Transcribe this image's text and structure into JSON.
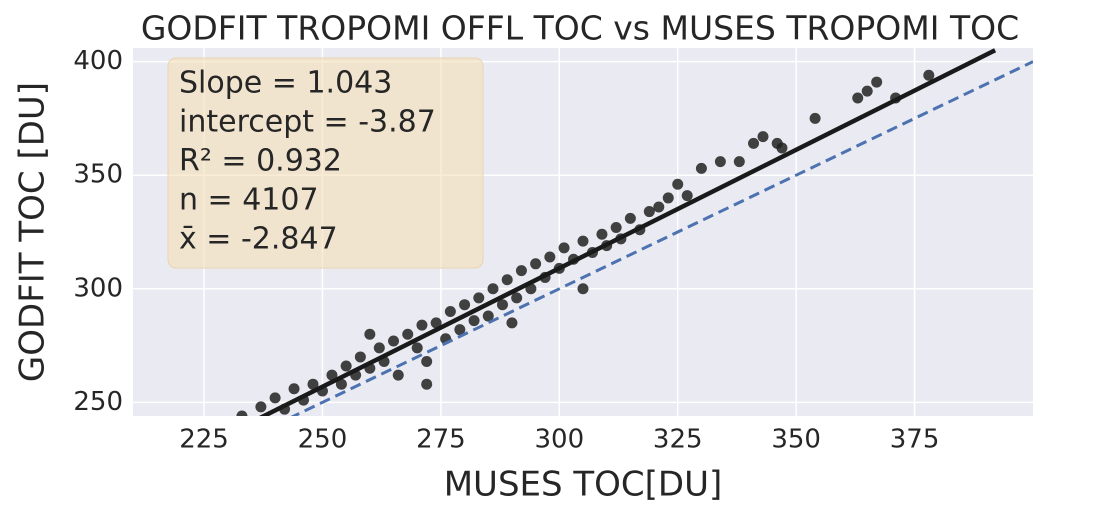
{
  "chart_data": {
    "type": "scatter",
    "title": "GODFIT TROPOMI OFFL TOC vs MUSES TROPOMI TOC",
    "x_label": "MUSES TOC[DU]",
    "y_label": "GODFIT TOC [DU]",
    "annotations": [
      "Slope = 1.043",
      "intercept = -3.87",
      "R² = 0.932",
      "n = 4107",
      "x̄ = -2.847"
    ],
    "color": "#222222",
    "x": [
      233,
      237,
      240,
      242,
      244,
      246,
      248,
      250,
      252,
      254,
      255,
      257,
      258,
      260,
      262,
      263,
      265,
      266,
      268,
      270,
      271,
      272,
      274,
      276,
      277,
      279,
      280,
      282,
      283,
      285,
      286,
      288,
      289,
      291,
      292,
      294,
      295,
      297,
      298,
      300,
      301,
      303,
      305,
      307,
      309,
      310,
      312,
      313,
      315,
      317,
      319,
      321,
      323,
      325,
      327,
      330,
      334,
      338,
      341,
      343,
      346,
      347,
      354,
      363,
      365,
      367,
      371,
      378,
      272,
      290,
      260,
      305
    ],
    "values": [
      244,
      248,
      252,
      247,
      256,
      251,
      258,
      255,
      262,
      258,
      266,
      262,
      270,
      265,
      274,
      268,
      277,
      262,
      280,
      274,
      284,
      268,
      285,
      278,
      290,
      282,
      293,
      286,
      296,
      288,
      300,
      293,
      304,
      296,
      308,
      300,
      311,
      305,
      314,
      309,
      318,
      313,
      321,
      316,
      324,
      319,
      327,
      322,
      331,
      326,
      334,
      336,
      340,
      346,
      341,
      353,
      356,
      356,
      364,
      367,
      364,
      362,
      375,
      384,
      387,
      391,
      384,
      394,
      258,
      285,
      280,
      300
    ],
    "lines": [
      {
        "x": [
          232,
          392
        ],
        "values": [
          238.11,
          404.99
        ],
        "color": "#1a1a1a",
        "style": "solid"
      },
      {
        "x": [
          243,
          400
        ],
        "values": [
          243,
          400
        ],
        "color": "#4c72b0",
        "style": "dashed"
      }
    ],
    "xlim": [
      210,
      400
    ],
    "ylim": [
      244,
      406
    ],
    "xticks": [
      225,
      250,
      275,
      300,
      325,
      350,
      375
    ],
    "yticks": [
      250,
      300,
      350,
      400
    ],
    "grid": true
  }
}
